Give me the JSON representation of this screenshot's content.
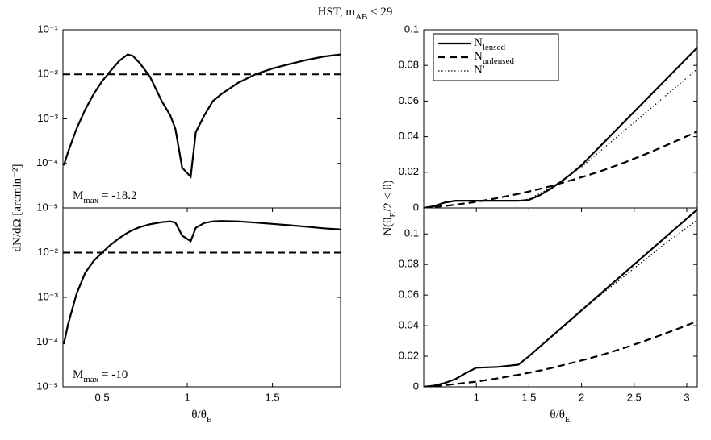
{
  "title": {
    "text": "HST, m",
    "sub": "AB",
    "rest": " < 29"
  },
  "left_ylabel": "dN/dΩ [arcmin⁻²]",
  "right_ylabel": {
    "text": "N(θ",
    "sub": "E",
    "rest": "/2 ≤ θ)"
  },
  "left_xlabel": {
    "text": "θ/θ",
    "sub": "E"
  },
  "right_xlabel": {
    "text": "θ/θ",
    "sub": "E"
  },
  "chart_data": [
    {
      "type": "line",
      "yscale": "log",
      "annotation": {
        "text": "M",
        "sub": "max",
        "rest": " = -18.2"
      },
      "x": [
        0.275,
        0.3,
        0.35,
        0.4,
        0.45,
        0.5,
        0.55,
        0.6,
        0.65,
        0.68,
        0.72,
        0.78,
        0.85,
        0.9,
        0.93,
        0.97,
        1.02,
        1.05,
        1.1,
        1.15,
        1.2,
        1.3,
        1.4,
        1.5,
        1.6,
        1.7,
        1.8,
        1.9
      ],
      "series": [
        {
          "color": "#000",
          "dash": "solid",
          "values": [
            9e-05,
            0.00018,
            0.0006,
            0.0016,
            0.0036,
            0.007,
            0.012,
            0.02,
            0.028,
            0.026,
            0.018,
            0.009,
            0.0025,
            0.0012,
            0.0006,
            8e-05,
            5e-05,
            0.0005,
            0.0012,
            0.0025,
            0.0036,
            0.0065,
            0.01,
            0.0135,
            0.017,
            0.021,
            0.025,
            0.028
          ]
        }
      ],
      "hline": {
        "value": 0.01,
        "color": "#000",
        "dash": "dashed"
      },
      "xlim": [
        0.27,
        1.9
      ],
      "ylim": [
        1e-05,
        0.1
      ],
      "yticks": [
        {
          "value": 1e-05,
          "label": "10⁻⁵"
        },
        {
          "value": 0.0001,
          "label": "10⁻⁴"
        },
        {
          "value": 0.001,
          "label": "10⁻³"
        },
        {
          "value": 0.01,
          "label": "10⁻²"
        },
        {
          "value": 0.1,
          "label": "10⁻¹"
        }
      ]
    },
    {
      "type": "line",
      "yscale": "log",
      "annotation": {
        "text": "M",
        "sub": "max",
        "rest": " = -10"
      },
      "x": [
        0.275,
        0.3,
        0.35,
        0.4,
        0.45,
        0.5,
        0.55,
        0.6,
        0.65,
        0.68,
        0.72,
        0.78,
        0.85,
        0.9,
        0.93,
        0.97,
        1.02,
        1.05,
        1.1,
        1.15,
        1.2,
        1.3,
        1.4,
        1.5,
        1.6,
        1.7,
        1.8,
        1.9
      ],
      "series": [
        {
          "color": "#000",
          "dash": "solid",
          "values": [
            9e-05,
            0.00025,
            0.0012,
            0.0035,
            0.0065,
            0.01,
            0.015,
            0.021,
            0.028,
            0.032,
            0.037,
            0.043,
            0.048,
            0.05,
            0.047,
            0.024,
            0.018,
            0.036,
            0.046,
            0.05,
            0.051,
            0.05,
            0.047,
            0.044,
            0.041,
            0.038,
            0.035,
            0.033
          ]
        }
      ],
      "hline": {
        "value": 0.01,
        "color": "#000",
        "dash": "dashed"
      },
      "xlim": [
        0.27,
        1.9
      ],
      "ylim": [
        1e-05,
        0.1
      ],
      "xticks": [
        0.5,
        1,
        1.5
      ],
      "yticks": [
        {
          "value": 1e-05,
          "label": "10⁻⁵"
        },
        {
          "value": 0.0001,
          "label": "10⁻⁴"
        },
        {
          "value": 0.001,
          "label": "10⁻³"
        },
        {
          "value": 0.01,
          "label": "10⁻²"
        }
      ]
    },
    {
      "type": "line",
      "legend": "upper left",
      "x": [
        0.5,
        0.6,
        0.7,
        0.8,
        0.9,
        1,
        1.2,
        1.4,
        1.5,
        1.6,
        1.7,
        1.8,
        1.9,
        2,
        2.2,
        2.4,
        2.6,
        2.8,
        3,
        3.1
      ],
      "series": [
        {
          "name": "N",
          "name_sub": "lensed",
          "color": "#000",
          "dash": "solid",
          "values": [
            0,
            0.001,
            0.003,
            0.004,
            0.004,
            0.004,
            0.004,
            0.004,
            0.0045,
            0.007,
            0.0105,
            0.0145,
            0.019,
            0.024,
            0.036,
            0.048,
            0.06,
            0.072,
            0.084,
            0.09
          ]
        },
        {
          "name": "N",
          "name_sub": "unlensed",
          "color": "#000",
          "dash": "dashed",
          "values": [
            0,
            0.0005,
            0.0011,
            0.0018,
            0.0026,
            0.0034,
            0.0055,
            0.0079,
            0.0092,
            0.0106,
            0.0121,
            0.0138,
            0.0155,
            0.0172,
            0.021,
            0.0253,
            0.03,
            0.035,
            0.0402,
            0.043
          ]
        },
        {
          "name": "N'",
          "color": "#000",
          "dash": "dotted",
          "values": [
            0,
            0.001,
            0.003,
            0.004,
            0.004,
            0.004,
            0.004,
            0.004,
            0.005,
            0.008,
            0.011,
            0.015,
            0.019,
            0.023,
            0.033,
            0.043,
            0.053,
            0.063,
            0.073,
            0.078
          ]
        }
      ],
      "xlim": [
        0.5,
        3.1
      ],
      "ylim": [
        0,
        0.1
      ],
      "yticks": [
        0,
        0.02,
        0.04,
        0.06,
        0.08,
        0.1
      ]
    },
    {
      "type": "line",
      "x": [
        0.5,
        0.6,
        0.7,
        0.8,
        0.9,
        1,
        1.2,
        1.4,
        1.5,
        1.6,
        1.7,
        1.8,
        1.9,
        2,
        2.2,
        2.4,
        2.6,
        2.8,
        3,
        3.1
      ],
      "series": [
        {
          "color": "#000",
          "dash": "solid",
          "values": [
            0,
            0.0008,
            0.0025,
            0.005,
            0.009,
            0.0125,
            0.013,
            0.0145,
            0.02,
            0.026,
            0.032,
            0.038,
            0.044,
            0.05,
            0.062,
            0.074,
            0.086,
            0.098,
            0.11,
            0.116
          ]
        },
        {
          "color": "#000",
          "dash": "dashed",
          "values": [
            0,
            0.0005,
            0.0011,
            0.0018,
            0.0026,
            0.0034,
            0.0055,
            0.0079,
            0.0092,
            0.0106,
            0.0121,
            0.0138,
            0.0155,
            0.0172,
            0.021,
            0.0253,
            0.03,
            0.035,
            0.0402,
            0.043
          ]
        },
        {
          "color": "#000",
          "dash": "dotted",
          "values": [
            0,
            0.0008,
            0.0025,
            0.005,
            0.009,
            0.0125,
            0.013,
            0.0145,
            0.02,
            0.026,
            0.032,
            0.038,
            0.044,
            0.05,
            0.061,
            0.072,
            0.083,
            0.094,
            0.104,
            0.109
          ]
        }
      ],
      "xlim": [
        0.5,
        3.1
      ],
      "ylim": [
        0,
        0.117
      ],
      "xticks": [
        1,
        1.5,
        2,
        2.5,
        3
      ],
      "yticks": [
        0,
        0.02,
        0.04,
        0.06,
        0.08,
        0.1
      ]
    }
  ]
}
